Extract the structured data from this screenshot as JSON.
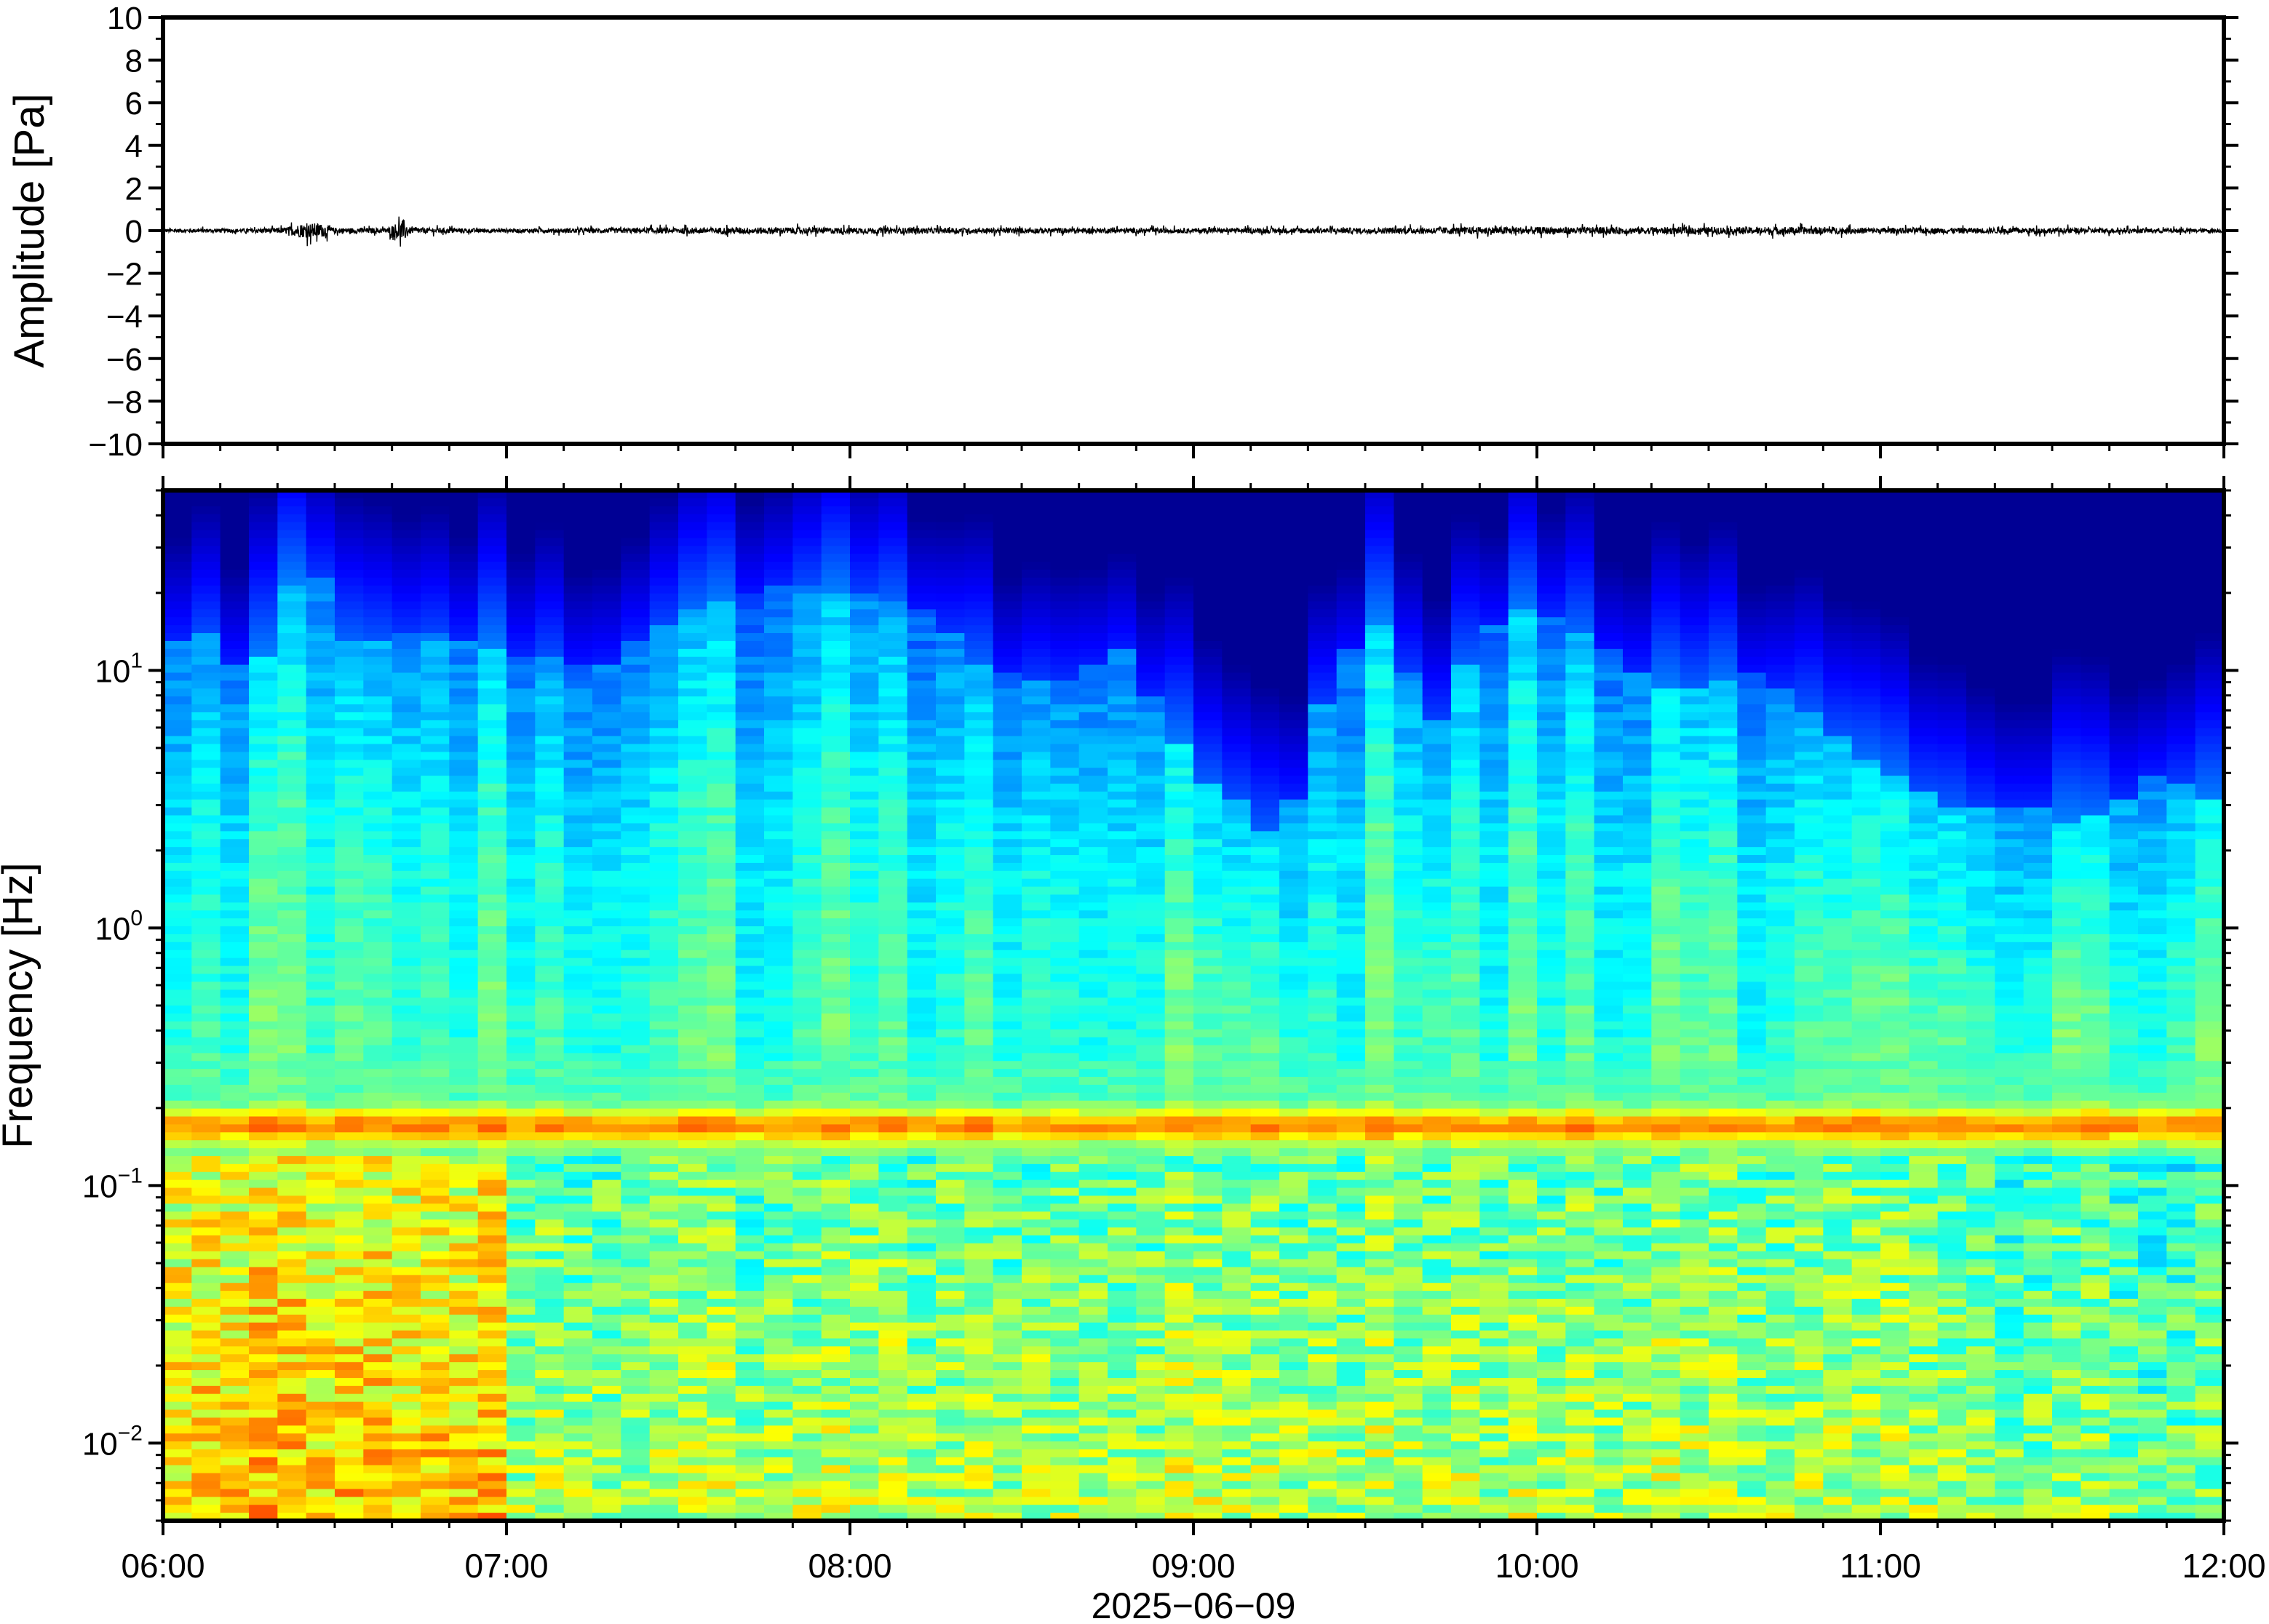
{
  "chart_data": [
    {
      "type": "line",
      "title": "",
      "ylabel": "Amplitude [Pa]",
      "ylim": [
        -10,
        10
      ],
      "yticks": [
        "10",
        "8",
        "6",
        "4",
        "2",
        "0",
        "−2",
        "−4",
        "−6",
        "−8",
        "−10"
      ],
      "ytick_values": [
        10,
        8,
        6,
        4,
        2,
        0,
        -2,
        -4,
        -6,
        -8,
        -10
      ],
      "xlim": [
        "06:00",
        "12:00"
      ],
      "grid": false,
      "series": [
        {
          "color": "#000000",
          "trace_envelope": {
            "x_hours": [
              6.0,
              6.2,
              6.35,
              6.4,
              6.45,
              6.5,
              6.65,
              6.7,
              6.72,
              7.0,
              7.7,
              8.2,
              9.0,
              9.5,
              9.9,
              10.2,
              10.7,
              11.0,
              11.5,
              12.0
            ],
            "amplitude_pa": [
              0.2,
              0.2,
              0.3,
              0.7,
              0.8,
              0.3,
              0.25,
              1.2,
              0.3,
              0.2,
              0.35,
              0.3,
              0.25,
              0.3,
              0.4,
              0.35,
              0.4,
              0.3,
              0.3,
              0.2
            ]
          }
        }
      ]
    },
    {
      "type": "heatmap",
      "ylabel": "Frequency [Hz]",
      "xlabel": "2025−06−09",
      "yscale": "log",
      "ylim_hz": [
        0.005,
        50
      ],
      "ytick_values": [
        10,
        1,
        0.1,
        0.01
      ],
      "yticks": [
        {
          "base": "10",
          "exp": "1"
        },
        {
          "base": "10",
          "exp": "0"
        },
        {
          "base": "10",
          "exp": "−1"
        },
        {
          "base": "10",
          "exp": "−2"
        }
      ],
      "x": [
        "06:00",
        "07:00",
        "08:00",
        "09:00",
        "10:00",
        "11:00",
        "12:00"
      ],
      "colormap": "jet",
      "microbarom_band_hz": 0.17,
      "upper_cutoff_hz": {
        "x_hours": [
          6.0,
          6.15,
          6.25,
          6.42,
          6.55,
          6.75,
          7.0,
          7.25,
          7.5,
          7.8,
          8.0,
          8.2,
          8.4,
          8.6,
          8.8,
          9.0,
          9.15,
          9.25,
          9.4,
          9.55,
          9.7,
          9.85,
          10.0,
          10.2,
          10.4,
          10.6,
          10.8,
          11.0,
          11.2,
          11.4,
          11.6,
          11.8,
          12.0
        ],
        "values": [
          12,
          15,
          8,
          30,
          12,
          14,
          12,
          10,
          16,
          22,
          20,
          18,
          10,
          9,
          12,
          4,
          3,
          2,
          10,
          15,
          6,
          15,
          18,
          12,
          8,
          10,
          7,
          4,
          3,
          3,
          2.5,
          4,
          3
        ]
      }
    }
  ]
}
